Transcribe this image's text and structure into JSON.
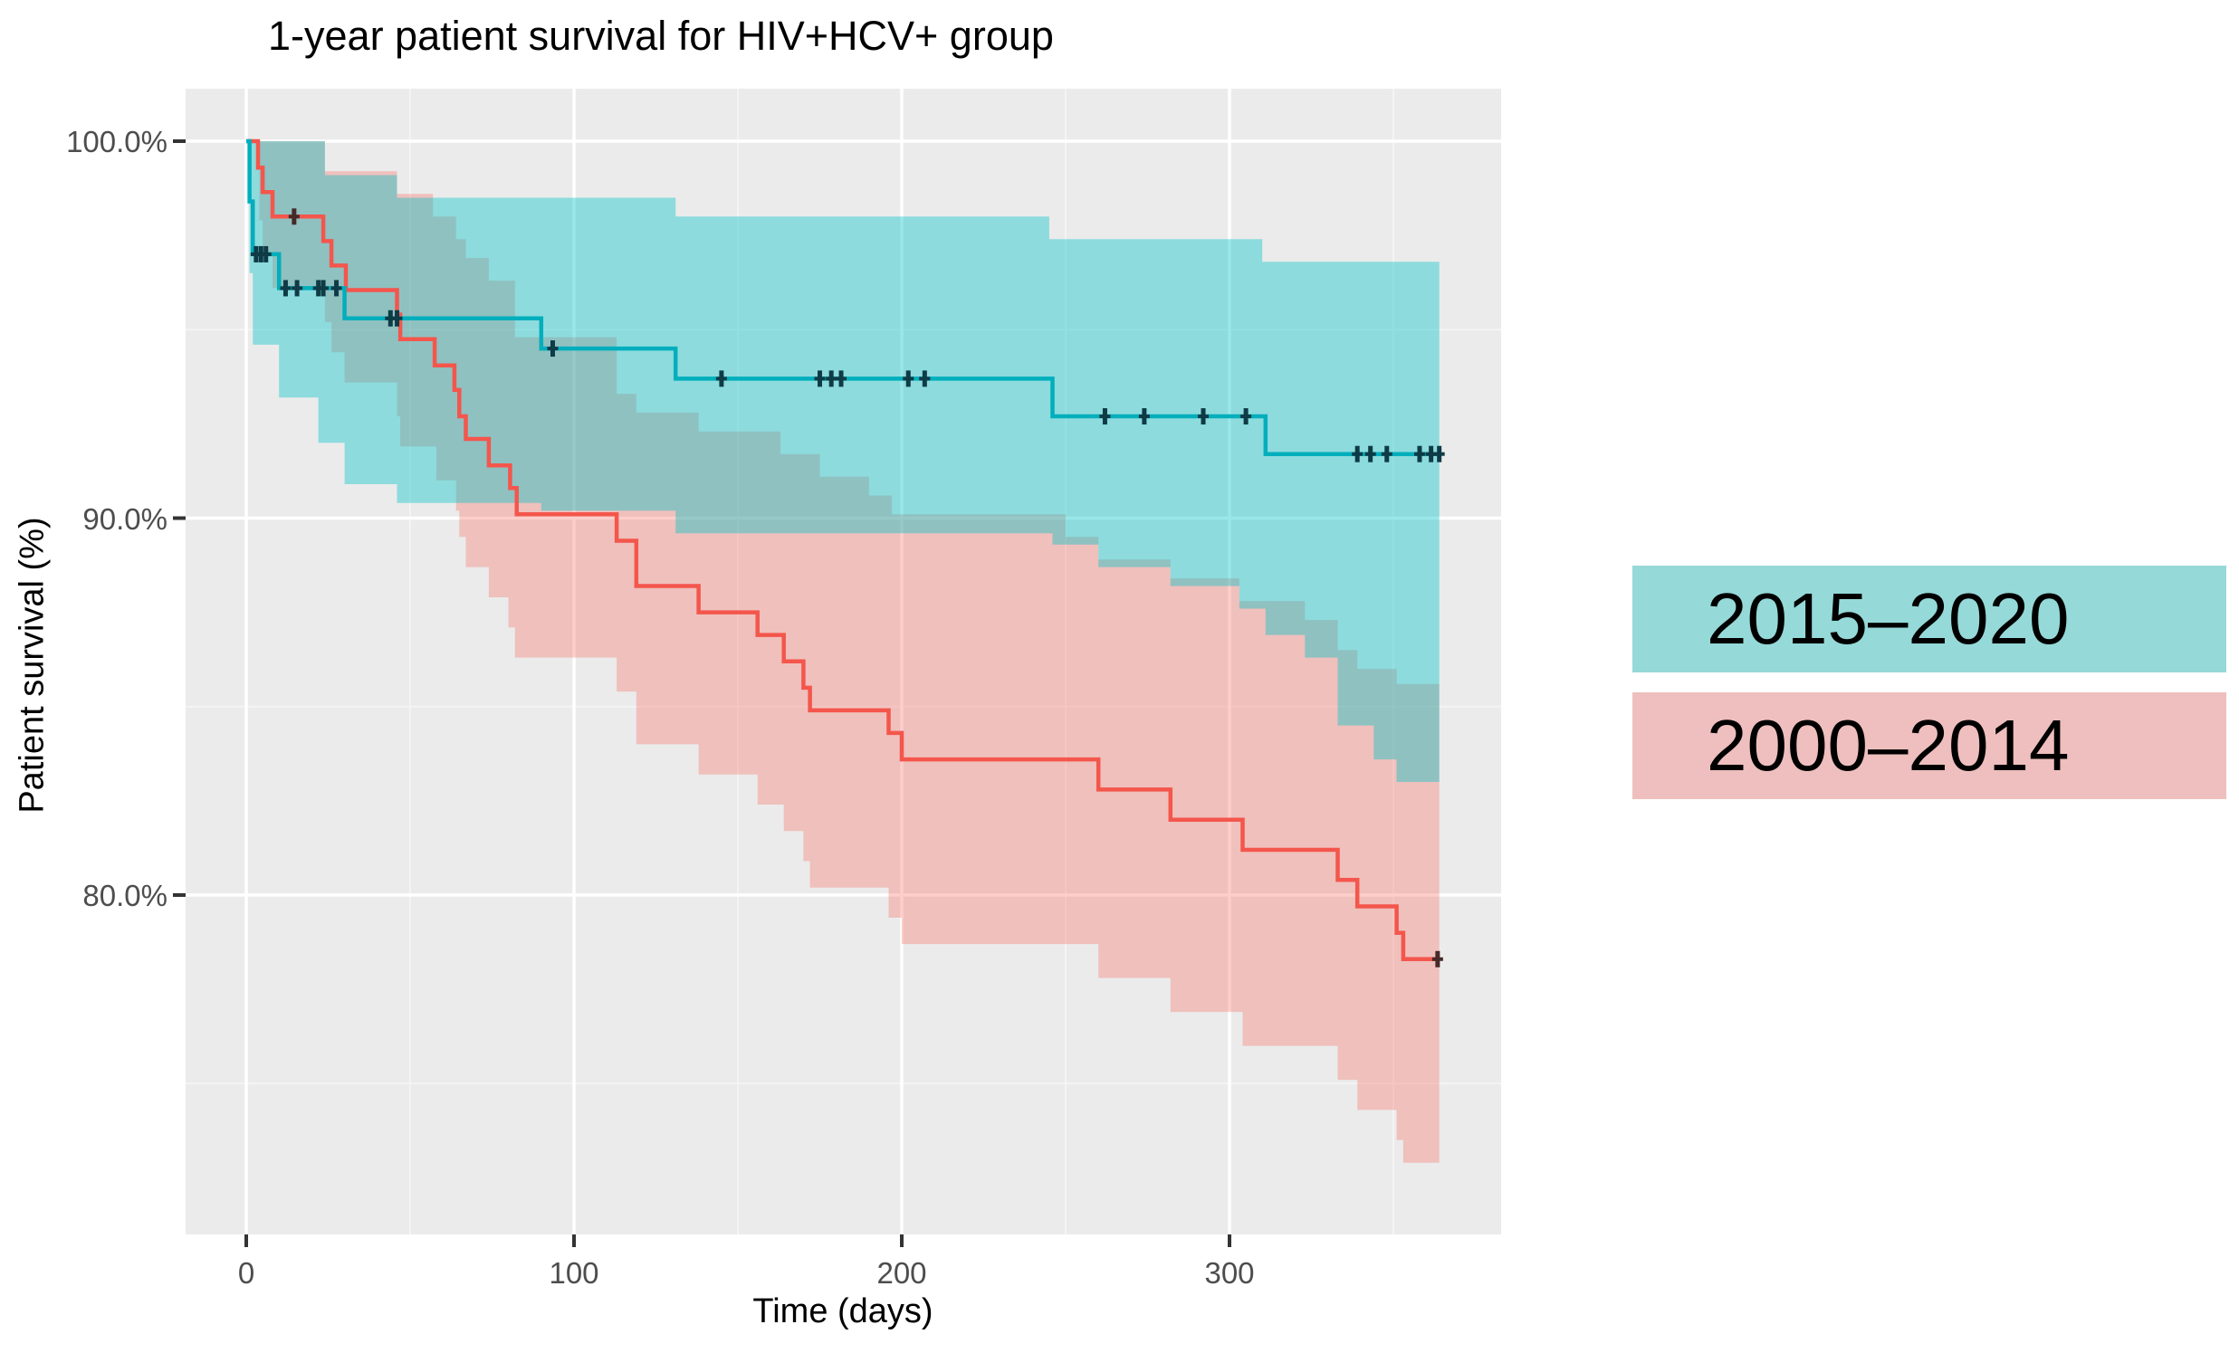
{
  "chart_data": {
    "type": "line",
    "subtype": "kaplan-meier-step",
    "title": "1-year patient survival for HIV+HCV+ group",
    "xlabel": "Time (days)",
    "ylabel": "Patient survival (%)",
    "legend_position": "right",
    "grid": true,
    "panel_bg": "#ebebeb",
    "major_grid_color": "#ffffff",
    "minor_grid_color": "#f4f4f4",
    "tick_color": "#333333",
    "tick_label_color": "#4d4d4d",
    "axes": {
      "x": {
        "ticks": [
          0,
          100,
          200,
          300
        ],
        "tick_labels": [
          "0",
          "100",
          "200",
          "300"
        ],
        "minor_ticks": [
          50,
          150,
          250,
          350
        ],
        "range_days": [
          -18,
          383
        ]
      },
      "y": {
        "ticks": [
          100,
          90,
          80
        ],
        "tick_labels": [
          "100.0%",
          "90.0%",
          "80.0%"
        ],
        "minor_ticks": [
          95,
          85,
          75
        ],
        "range_pct": [
          71,
          101.4
        ]
      }
    },
    "series": [
      {
        "name": "2000–2014",
        "line_color": "#f4564c",
        "band_fill": "rgba(248,105,95,0.33)",
        "censor_color": "#472a28",
        "end_day": 364,
        "steps": [
          [
            0,
            100
          ],
          [
            3.6,
            99.3
          ],
          [
            5,
            98.65
          ],
          [
            8,
            98.0
          ],
          [
            23.5,
            97.35
          ],
          [
            26,
            96.7
          ],
          [
            30.4,
            96.05
          ],
          [
            46,
            95.4
          ],
          [
            47,
            94.75
          ],
          [
            57.5,
            94.05
          ],
          [
            63.5,
            93.4
          ],
          [
            65,
            92.7
          ],
          [
            67,
            92.1
          ],
          [
            74,
            91.4
          ],
          [
            80.5,
            90.8
          ],
          [
            82.5,
            90.1
          ],
          [
            113,
            89.4
          ],
          [
            119,
            88.2
          ],
          [
            138,
            87.5
          ],
          [
            156,
            86.9
          ],
          [
            164,
            86.2
          ],
          [
            170,
            85.5
          ],
          [
            172,
            84.9
          ],
          [
            196,
            84.3
          ],
          [
            200,
            83.6
          ],
          [
            260,
            82.8
          ],
          [
            282,
            82.0
          ],
          [
            304,
            81.2
          ],
          [
            333,
            80.4
          ],
          [
            339,
            79.7
          ],
          [
            351,
            79.0
          ],
          [
            353,
            78.3
          ]
        ],
        "upper_ci": [
          [
            0,
            100
          ],
          [
            24,
            99.2
          ],
          [
            46,
            98.6
          ],
          [
            57,
            98.0
          ],
          [
            64,
            97.4
          ],
          [
            67,
            96.9
          ],
          [
            74,
            96.3
          ],
          [
            82,
            94.8
          ],
          [
            113,
            93.3
          ],
          [
            119,
            92.8
          ],
          [
            138,
            92.3
          ],
          [
            163,
            91.7
          ],
          [
            175,
            91.1
          ],
          [
            190,
            90.6
          ],
          [
            197,
            90.1
          ],
          [
            250,
            89.5
          ],
          [
            260,
            88.9
          ],
          [
            282,
            88.4
          ],
          [
            303,
            87.8
          ],
          [
            323,
            87.3
          ],
          [
            333,
            86.5
          ],
          [
            339,
            86.0
          ],
          [
            351,
            85.6
          ]
        ],
        "lower_ci": [
          [
            0,
            100
          ],
          [
            4,
            97.9
          ],
          [
            5,
            97.0
          ],
          [
            8,
            96.1
          ],
          [
            24,
            95.2
          ],
          [
            26,
            94.4
          ],
          [
            30,
            93.6
          ],
          [
            46,
            92.7
          ],
          [
            47,
            91.9
          ],
          [
            58,
            91.0
          ],
          [
            64,
            90.2
          ],
          [
            65,
            89.5
          ],
          [
            67,
            88.7
          ],
          [
            74,
            87.9
          ],
          [
            80,
            87.1
          ],
          [
            82,
            86.3
          ],
          [
            113,
            85.4
          ],
          [
            119,
            84.0
          ],
          [
            138,
            83.2
          ],
          [
            156,
            82.4
          ],
          [
            164,
            81.7
          ],
          [
            170,
            80.9
          ],
          [
            172,
            80.2
          ],
          [
            196,
            79.4
          ],
          [
            200,
            78.7
          ],
          [
            260,
            77.8
          ],
          [
            282,
            76.9
          ],
          [
            304,
            76.0
          ],
          [
            333,
            75.1
          ],
          [
            339,
            74.3
          ],
          [
            351,
            73.5
          ],
          [
            353,
            72.9
          ]
        ],
        "censors": [
          [
            14.6,
            98.0
          ],
          [
            363.5,
            78.3
          ]
        ]
      },
      {
        "name": "2015–2020",
        "line_color": "#00aebc",
        "band_fill": "rgba(0,195,200,0.40)",
        "censor_color": "#0e3b46",
        "end_day": 364,
        "steps": [
          [
            0,
            100
          ],
          [
            1,
            98.4
          ],
          [
            2,
            97.0
          ],
          [
            10,
            96.1
          ],
          [
            30,
            95.3
          ],
          [
            90,
            94.5
          ],
          [
            131,
            93.7
          ],
          [
            246,
            92.7
          ],
          [
            311,
            91.7
          ]
        ],
        "upper_ci": [
          [
            0,
            100
          ],
          [
            24,
            99.1
          ],
          [
            46,
            98.5
          ],
          [
            131,
            98.0
          ],
          [
            245,
            97.4
          ],
          [
            310,
            96.8
          ]
        ],
        "lower_ci": [
          [
            0,
            100
          ],
          [
            1,
            96.5
          ],
          [
            2,
            94.6
          ],
          [
            10,
            93.2
          ],
          [
            22,
            92.0
          ],
          [
            30,
            90.9
          ],
          [
            46,
            90.4
          ],
          [
            90,
            90.2
          ],
          [
            131,
            89.6
          ],
          [
            246,
            89.3
          ],
          [
            260,
            88.7
          ],
          [
            282,
            88.2
          ],
          [
            303,
            87.6
          ],
          [
            311,
            86.9
          ],
          [
            323,
            86.3
          ],
          [
            333,
            84.5
          ],
          [
            344,
            83.6
          ],
          [
            351,
            83.0
          ]
        ],
        "censors": [
          [
            3,
            97.0
          ],
          [
            4.5,
            97.0
          ],
          [
            6,
            97.0
          ],
          [
            12,
            96.1
          ],
          [
            15.5,
            96.1
          ],
          [
            22,
            96.1
          ],
          [
            23.5,
            96.1
          ],
          [
            27.5,
            96.1
          ],
          [
            44,
            95.3
          ],
          [
            46,
            95.3
          ],
          [
            93.5,
            94.5
          ],
          [
            145,
            93.7
          ],
          [
            175,
            93.7
          ],
          [
            178.5,
            93.7
          ],
          [
            181.5,
            93.7
          ],
          [
            202,
            93.7
          ],
          [
            207,
            93.7
          ],
          [
            262,
            92.7
          ],
          [
            274,
            92.7
          ],
          [
            292,
            92.7
          ],
          [
            305,
            92.7
          ],
          [
            339,
            91.7
          ],
          [
            343,
            91.7
          ],
          [
            348,
            91.7
          ],
          [
            358,
            91.7
          ],
          [
            361.5,
            91.7
          ],
          [
            364,
            91.7
          ]
        ]
      }
    ]
  },
  "legend": {
    "items": [
      {
        "label": "2015–2020",
        "swatch_color": "#95d9d8"
      },
      {
        "label": "2000–2014",
        "swatch_color": "#eebfbe"
      }
    ]
  }
}
